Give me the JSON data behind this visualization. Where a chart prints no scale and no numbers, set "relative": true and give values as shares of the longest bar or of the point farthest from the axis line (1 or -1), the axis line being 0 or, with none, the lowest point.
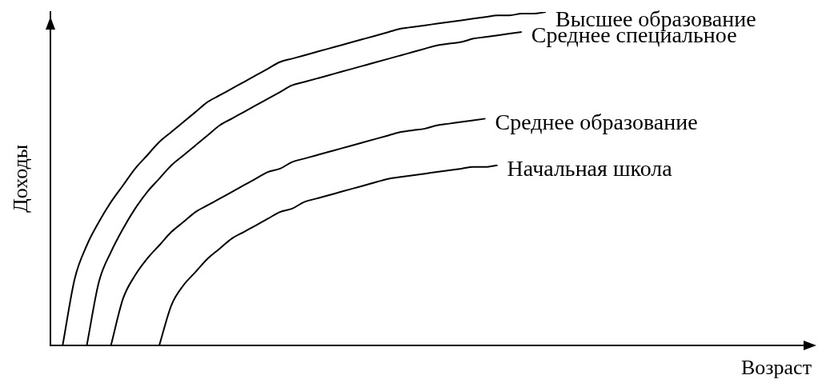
{
  "chart_data": {
    "type": "line",
    "relative": true,
    "xlabel": "Возраст",
    "ylabel": "Доходы",
    "grid": false,
    "legend": false,
    "marker": "none",
    "line_style": "solid",
    "categories": [
      null,
      null,
      null,
      null,
      null,
      null,
      null,
      null,
      null,
      null,
      null,
      null,
      null,
      null,
      null,
      null,
      null,
      null,
      null,
      null,
      null,
      null,
      null,
      null,
      null,
      null,
      null,
      null,
      null,
      null,
      null,
      null,
      null,
      null,
      null,
      null,
      null,
      null,
      null,
      null,
      null,
      null,
      null,
      null,
      null,
      null,
      null,
      null,
      null,
      null,
      null,
      null,
      null,
      null,
      null,
      null,
      null,
      null,
      null,
      null,
      null,
      null,
      null,
      null
    ],
    "series": [
      {
        "name": "Высшее образование",
        "color": "#000000",
        "values": [
          null,
          0,
          0.2,
          0.3,
          0.37,
          0.43,
          0.48,
          0.53,
          0.57,
          0.61,
          0.64,
          0.67,
          0.7,
          0.73,
          0.75,
          0.77,
          0.79,
          0.81,
          0.83,
          0.85,
          0.86,
          0.87,
          0.88,
          0.89,
          0.9,
          0.91,
          0.92,
          0.93,
          0.94,
          0.95,
          0.955,
          0.96,
          0.965,
          0.97,
          0.975,
          0.98,
          0.985,
          0.99,
          0.99,
          0.995,
          0.995,
          1,
          null,
          null,
          null,
          null,
          null,
          null,
          null,
          null,
          null,
          null,
          null,
          null,
          null,
          null,
          null,
          null,
          null,
          null,
          null,
          null,
          null,
          null
        ]
      },
      {
        "name": "Среднее специальное",
        "color": "#000000",
        "values": [
          null,
          null,
          null,
          0,
          0.19,
          0.28,
          0.35,
          0.41,
          0.46,
          0.5,
          0.54,
          0.57,
          0.6,
          0.63,
          0.66,
          0.68,
          0.7,
          0.72,
          0.74,
          0.76,
          0.78,
          0.79,
          0.8,
          0.81,
          0.82,
          0.83,
          0.84,
          0.85,
          0.86,
          0.87,
          0.88,
          0.89,
          0.9,
          0.905,
          0.91,
          0.92,
          0.925,
          0.93,
          0.935,
          0.94,
          null,
          null,
          null,
          null,
          null,
          null,
          null,
          null,
          null,
          null,
          null,
          null,
          null,
          null,
          null,
          null,
          null,
          null,
          null,
          null,
          null,
          null,
          null,
          null
        ]
      },
      {
        "name": "Среднее образование",
        "color": "#000000",
        "values": [
          null,
          null,
          null,
          null,
          null,
          0,
          0.14,
          0.21,
          0.26,
          0.3,
          0.34,
          0.37,
          0.4,
          0.42,
          0.44,
          0.46,
          0.48,
          0.5,
          0.52,
          0.53,
          0.55,
          0.56,
          0.57,
          0.58,
          0.59,
          0.6,
          0.61,
          0.62,
          0.63,
          0.64,
          0.645,
          0.65,
          0.66,
          0.665,
          0.67,
          0.675,
          0.68,
          null,
          null,
          null,
          null,
          null,
          null,
          null,
          null,
          null,
          null,
          null,
          null,
          null,
          null,
          null,
          null,
          null,
          null,
          null,
          null,
          null,
          null,
          null,
          null,
          null,
          null,
          null
        ]
      },
      {
        "name": "Начальная школа",
        "color": "#000000",
        "values": [
          null,
          null,
          null,
          null,
          null,
          null,
          null,
          null,
          null,
          0,
          0.12,
          0.18,
          0.22,
          0.26,
          0.29,
          0.32,
          0.34,
          0.36,
          0.38,
          0.4,
          0.41,
          0.43,
          0.44,
          0.45,
          0.46,
          0.47,
          0.48,
          0.49,
          0.5,
          0.505,
          0.51,
          0.515,
          0.52,
          0.525,
          0.53,
          0.535,
          0.535,
          0.54,
          null,
          null,
          null,
          null,
          null,
          null,
          null,
          null,
          null,
          null,
          null,
          null,
          null,
          null,
          null,
          null,
          null,
          null,
          null,
          null,
          null,
          null,
          null,
          null,
          null,
          null
        ]
      }
    ]
  }
}
